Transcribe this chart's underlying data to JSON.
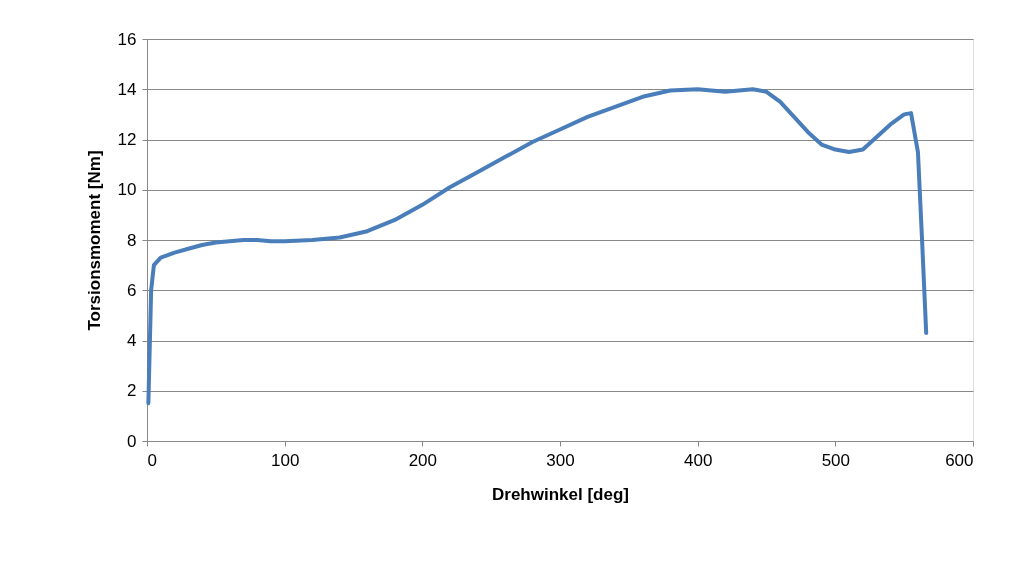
{
  "chart_data": {
    "type": "line",
    "xlabel": "Drehwinkel [deg]",
    "ylabel": "Torsionsmoment [Nm]",
    "xlim": [
      0,
      600
    ],
    "xticks": [
      0,
      100,
      200,
      300,
      400,
      500,
      600
    ],
    "ylim": [
      0,
      16
    ],
    "yticks": [
      0,
      2,
      4,
      6,
      8,
      10,
      12,
      14,
      16
    ],
    "grid": "y",
    "marker": "none",
    "line_style": "solid",
    "series": [
      {
        "color": "#4a7ebb",
        "x": [
          1,
          3,
          5,
          10,
          20,
          30,
          40,
          50,
          60,
          70,
          80,
          90,
          100,
          120,
          140,
          160,
          180,
          200,
          220,
          240,
          260,
          280,
          300,
          320,
          340,
          360,
          380,
          400,
          420,
          440,
          450,
          460,
          470,
          480,
          490,
          500,
          510,
          520,
          530,
          540,
          550,
          555,
          560,
          563,
          566
        ],
        "values": [
          1.5,
          6,
          7,
          7.3,
          7.5,
          7.65,
          7.8,
          7.9,
          7.95,
          8,
          8,
          7.95,
          7.95,
          8,
          8.1,
          8.35,
          8.8,
          9.4,
          10.1,
          10.7,
          11.3,
          11.9,
          12.4,
          12.9,
          13.3,
          13.7,
          13.95,
          14,
          13.9,
          14,
          13.9,
          13.5,
          12.9,
          12.3,
          11.8,
          11.6,
          11.5,
          11.6,
          12.1,
          12.6,
          13,
          13.05,
          11.5,
          8,
          4.3
        ]
      }
    ]
  }
}
